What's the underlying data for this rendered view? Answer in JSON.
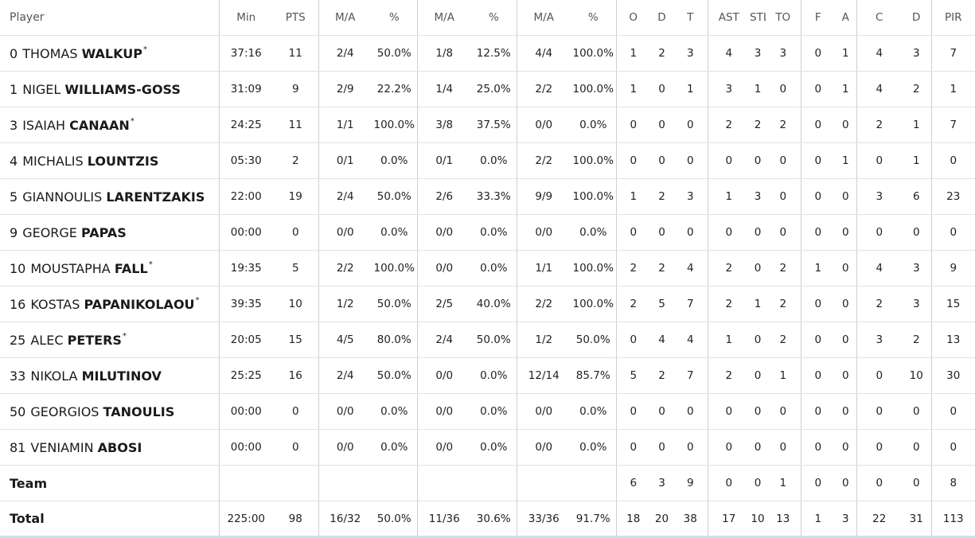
{
  "headers": {
    "player": "Player",
    "min": "Min",
    "pts": "PTS",
    "fg2_ma": "M/A",
    "fg2_pct": "%",
    "fg3_ma": "M/A",
    "fg3_pct": "%",
    "ft_ma": "M/A",
    "ft_pct": "%",
    "reb_o": "O",
    "reb_d": "D",
    "reb_t": "T",
    "ast": "AST",
    "stl": "STL",
    "to": "TO",
    "blk_f": "F",
    "blk_a": "A",
    "fouls_c": "C",
    "fouls_d": "D",
    "pir": "PIR"
  },
  "rows": [
    {
      "number": "0",
      "first": "THOMAS",
      "last": "WALKUP",
      "starter": "*",
      "min": "37:16",
      "pts": "11",
      "fg2_ma": "2/4",
      "fg2_pct": "50.0%",
      "fg3_ma": "1/8",
      "fg3_pct": "12.5%",
      "ft_ma": "4/4",
      "ft_pct": "100.0%",
      "reb_o": "1",
      "reb_d": "2",
      "reb_t": "3",
      "ast": "4",
      "stl": "3",
      "to": "3",
      "blk_f": "0",
      "blk_a": "1",
      "fouls_c": "4",
      "fouls_d": "3",
      "pir": "7"
    },
    {
      "number": "1",
      "first": "NIGEL",
      "last": "WILLIAMS-GOSS",
      "starter": "",
      "min": "31:09",
      "pts": "9",
      "fg2_ma": "2/9",
      "fg2_pct": "22.2%",
      "fg3_ma": "1/4",
      "fg3_pct": "25.0%",
      "ft_ma": "2/2",
      "ft_pct": "100.0%",
      "reb_o": "1",
      "reb_d": "0",
      "reb_t": "1",
      "ast": "3",
      "stl": "1",
      "to": "0",
      "blk_f": "0",
      "blk_a": "1",
      "fouls_c": "4",
      "fouls_d": "2",
      "pir": "1"
    },
    {
      "number": "3",
      "first": "ISAIAH",
      "last": "CANAAN",
      "starter": "*",
      "min": "24:25",
      "pts": "11",
      "fg2_ma": "1/1",
      "fg2_pct": "100.0%",
      "fg3_ma": "3/8",
      "fg3_pct": "37.5%",
      "ft_ma": "0/0",
      "ft_pct": "0.0%",
      "reb_o": "0",
      "reb_d": "0",
      "reb_t": "0",
      "ast": "2",
      "stl": "2",
      "to": "2",
      "blk_f": "0",
      "blk_a": "0",
      "fouls_c": "2",
      "fouls_d": "1",
      "pir": "7"
    },
    {
      "number": "4",
      "first": "MICHALIS",
      "last": "LOUNTZIS",
      "starter": "",
      "min": "05:30",
      "pts": "2",
      "fg2_ma": "0/1",
      "fg2_pct": "0.0%",
      "fg3_ma": "0/1",
      "fg3_pct": "0.0%",
      "ft_ma": "2/2",
      "ft_pct": "100.0%",
      "reb_o": "0",
      "reb_d": "0",
      "reb_t": "0",
      "ast": "0",
      "stl": "0",
      "to": "0",
      "blk_f": "0",
      "blk_a": "1",
      "fouls_c": "0",
      "fouls_d": "1",
      "pir": "0"
    },
    {
      "number": "5",
      "first": "GIANNOULIS",
      "last": "LARENTZAKIS",
      "starter": "",
      "min": "22:00",
      "pts": "19",
      "fg2_ma": "2/4",
      "fg2_pct": "50.0%",
      "fg3_ma": "2/6",
      "fg3_pct": "33.3%",
      "ft_ma": "9/9",
      "ft_pct": "100.0%",
      "reb_o": "1",
      "reb_d": "2",
      "reb_t": "3",
      "ast": "1",
      "stl": "3",
      "to": "0",
      "blk_f": "0",
      "blk_a": "0",
      "fouls_c": "3",
      "fouls_d": "6",
      "pir": "23"
    },
    {
      "number": "9",
      "first": "GEORGE",
      "last": "PAPAS",
      "starter": "",
      "min": "00:00",
      "pts": "0",
      "fg2_ma": "0/0",
      "fg2_pct": "0.0%",
      "fg3_ma": "0/0",
      "fg3_pct": "0.0%",
      "ft_ma": "0/0",
      "ft_pct": "0.0%",
      "reb_o": "0",
      "reb_d": "0",
      "reb_t": "0",
      "ast": "0",
      "stl": "0",
      "to": "0",
      "blk_f": "0",
      "blk_a": "0",
      "fouls_c": "0",
      "fouls_d": "0",
      "pir": "0"
    },
    {
      "number": "10",
      "first": "MOUSTAPHA",
      "last": "FALL",
      "starter": "*",
      "min": "19:35",
      "pts": "5",
      "fg2_ma": "2/2",
      "fg2_pct": "100.0%",
      "fg3_ma": "0/0",
      "fg3_pct": "0.0%",
      "ft_ma": "1/1",
      "ft_pct": "100.0%",
      "reb_o": "2",
      "reb_d": "2",
      "reb_t": "4",
      "ast": "2",
      "stl": "0",
      "to": "2",
      "blk_f": "1",
      "blk_a": "0",
      "fouls_c": "4",
      "fouls_d": "3",
      "pir": "9"
    },
    {
      "number": "16",
      "first": "KOSTAS",
      "last": "PAPANIKOLAOU",
      "starter": "*",
      "min": "39:35",
      "pts": "10",
      "fg2_ma": "1/2",
      "fg2_pct": "50.0%",
      "fg3_ma": "2/5",
      "fg3_pct": "40.0%",
      "ft_ma": "2/2",
      "ft_pct": "100.0%",
      "reb_o": "2",
      "reb_d": "5",
      "reb_t": "7",
      "ast": "2",
      "stl": "1",
      "to": "2",
      "blk_f": "0",
      "blk_a": "0",
      "fouls_c": "2",
      "fouls_d": "3",
      "pir": "15"
    },
    {
      "number": "25",
      "first": "ALEC",
      "last": "PETERS",
      "starter": "*",
      "min": "20:05",
      "pts": "15",
      "fg2_ma": "4/5",
      "fg2_pct": "80.0%",
      "fg3_ma": "2/4",
      "fg3_pct": "50.0%",
      "ft_ma": "1/2",
      "ft_pct": "50.0%",
      "reb_o": "0",
      "reb_d": "4",
      "reb_t": "4",
      "ast": "1",
      "stl": "0",
      "to": "2",
      "blk_f": "0",
      "blk_a": "0",
      "fouls_c": "3",
      "fouls_d": "2",
      "pir": "13"
    },
    {
      "number": "33",
      "first": "NIKOLA",
      "last": "MILUTINOV",
      "starter": "",
      "min": "25:25",
      "pts": "16",
      "fg2_ma": "2/4",
      "fg2_pct": "50.0%",
      "fg3_ma": "0/0",
      "fg3_pct": "0.0%",
      "ft_ma": "12/14",
      "ft_pct": "85.7%",
      "reb_o": "5",
      "reb_d": "2",
      "reb_t": "7",
      "ast": "2",
      "stl": "0",
      "to": "1",
      "blk_f": "0",
      "blk_a": "0",
      "fouls_c": "0",
      "fouls_d": "10",
      "pir": "30"
    },
    {
      "number": "50",
      "first": "GEORGIOS",
      "last": "TANOULIS",
      "starter": "",
      "min": "00:00",
      "pts": "0",
      "fg2_ma": "0/0",
      "fg2_pct": "0.0%",
      "fg3_ma": "0/0",
      "fg3_pct": "0.0%",
      "ft_ma": "0/0",
      "ft_pct": "0.0%",
      "reb_o": "0",
      "reb_d": "0",
      "reb_t": "0",
      "ast": "0",
      "stl": "0",
      "to": "0",
      "blk_f": "0",
      "blk_a": "0",
      "fouls_c": "0",
      "fouls_d": "0",
      "pir": "0"
    },
    {
      "number": "81",
      "first": "VENIAMIN",
      "last": "ABOSI",
      "starter": "",
      "min": "00:00",
      "pts": "0",
      "fg2_ma": "0/0",
      "fg2_pct": "0.0%",
      "fg3_ma": "0/0",
      "fg3_pct": "0.0%",
      "ft_ma": "0/0",
      "ft_pct": "0.0%",
      "reb_o": "0",
      "reb_d": "0",
      "reb_t": "0",
      "ast": "0",
      "stl": "0",
      "to": "0",
      "blk_f": "0",
      "blk_a": "0",
      "fouls_c": "0",
      "fouls_d": "0",
      "pir": "0"
    }
  ],
  "team": {
    "label": "Team",
    "min": "",
    "pts": "",
    "fg2_ma": "",
    "fg2_pct": "",
    "fg3_ma": "",
    "fg3_pct": "",
    "ft_ma": "",
    "ft_pct": "",
    "reb_o": "6",
    "reb_d": "3",
    "reb_t": "9",
    "ast": "0",
    "stl": "0",
    "to": "1",
    "blk_f": "0",
    "blk_a": "0",
    "fouls_c": "0",
    "fouls_d": "0",
    "pir": "8"
  },
  "total": {
    "label": "Total",
    "min": "225:00",
    "pts": "98",
    "fg2_ma": "16/32",
    "fg2_pct": "50.0%",
    "fg3_ma": "11/36",
    "fg3_pct": "30.6%",
    "ft_ma": "33/36",
    "ft_pct": "91.7%",
    "reb_o": "18",
    "reb_d": "20",
    "reb_t": "38",
    "ast": "17",
    "stl": "10",
    "to": "13",
    "blk_f": "1",
    "blk_a": "3",
    "fouls_c": "22",
    "fouls_d": "31",
    "pir": "113"
  }
}
